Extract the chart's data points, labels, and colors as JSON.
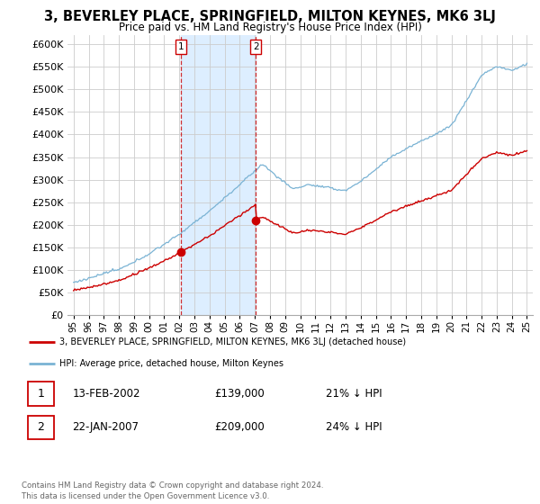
{
  "title": "3, BEVERLEY PLACE, SPRINGFIELD, MILTON KEYNES, MK6 3LJ",
  "subtitle": "Price paid vs. HM Land Registry's House Price Index (HPI)",
  "legend_line1": "3, BEVERLEY PLACE, SPRINGFIELD, MILTON KEYNES, MK6 3LJ (detached house)",
  "legend_line2": "HPI: Average price, detached house, Milton Keynes",
  "footnote": "Contains HM Land Registry data © Crown copyright and database right 2024.\nThis data is licensed under the Open Government Licence v3.0.",
  "table": [
    {
      "num": "1",
      "date": "13-FEB-2002",
      "price": "£139,000",
      "hpi": "21% ↓ HPI"
    },
    {
      "num": "2",
      "date": "22-JAN-2007",
      "price": "£209,000",
      "hpi": "24% ↓ HPI"
    }
  ],
  "marker1_x": 2002.1,
  "marker1_y": 139000,
  "marker2_x": 2007.05,
  "marker2_y": 209000,
  "hpi_color": "#7ab3d4",
  "price_color": "#cc0000",
  "shade_color": "#ddeeff",
  "bg_color": "#ffffff",
  "grid_color": "#cccccc",
  "ylim": [
    0,
    620000
  ],
  "xlim_start": 1994.6,
  "xlim_end": 2025.4
}
